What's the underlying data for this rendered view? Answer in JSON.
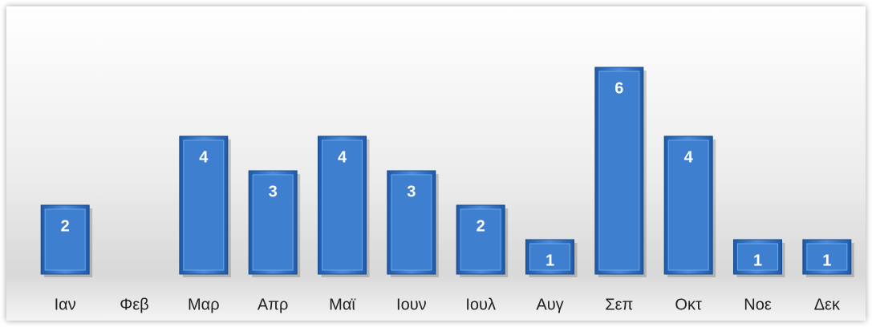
{
  "chart_data": {
    "type": "bar",
    "categories": [
      "Ιαν",
      "Φεβ",
      "Μαρ",
      "Απρ",
      "Μαϊ",
      "Ιουν",
      "Ιουλ",
      "Αυγ",
      "Σεπ",
      "Οκτ",
      "Νοε",
      "Δεκ"
    ],
    "values": [
      2,
      null,
      4,
      3,
      4,
      3,
      2,
      1,
      6,
      4,
      1,
      1
    ],
    "color": "#3f7fcf",
    "ylim": [
      0,
      7
    ]
  }
}
